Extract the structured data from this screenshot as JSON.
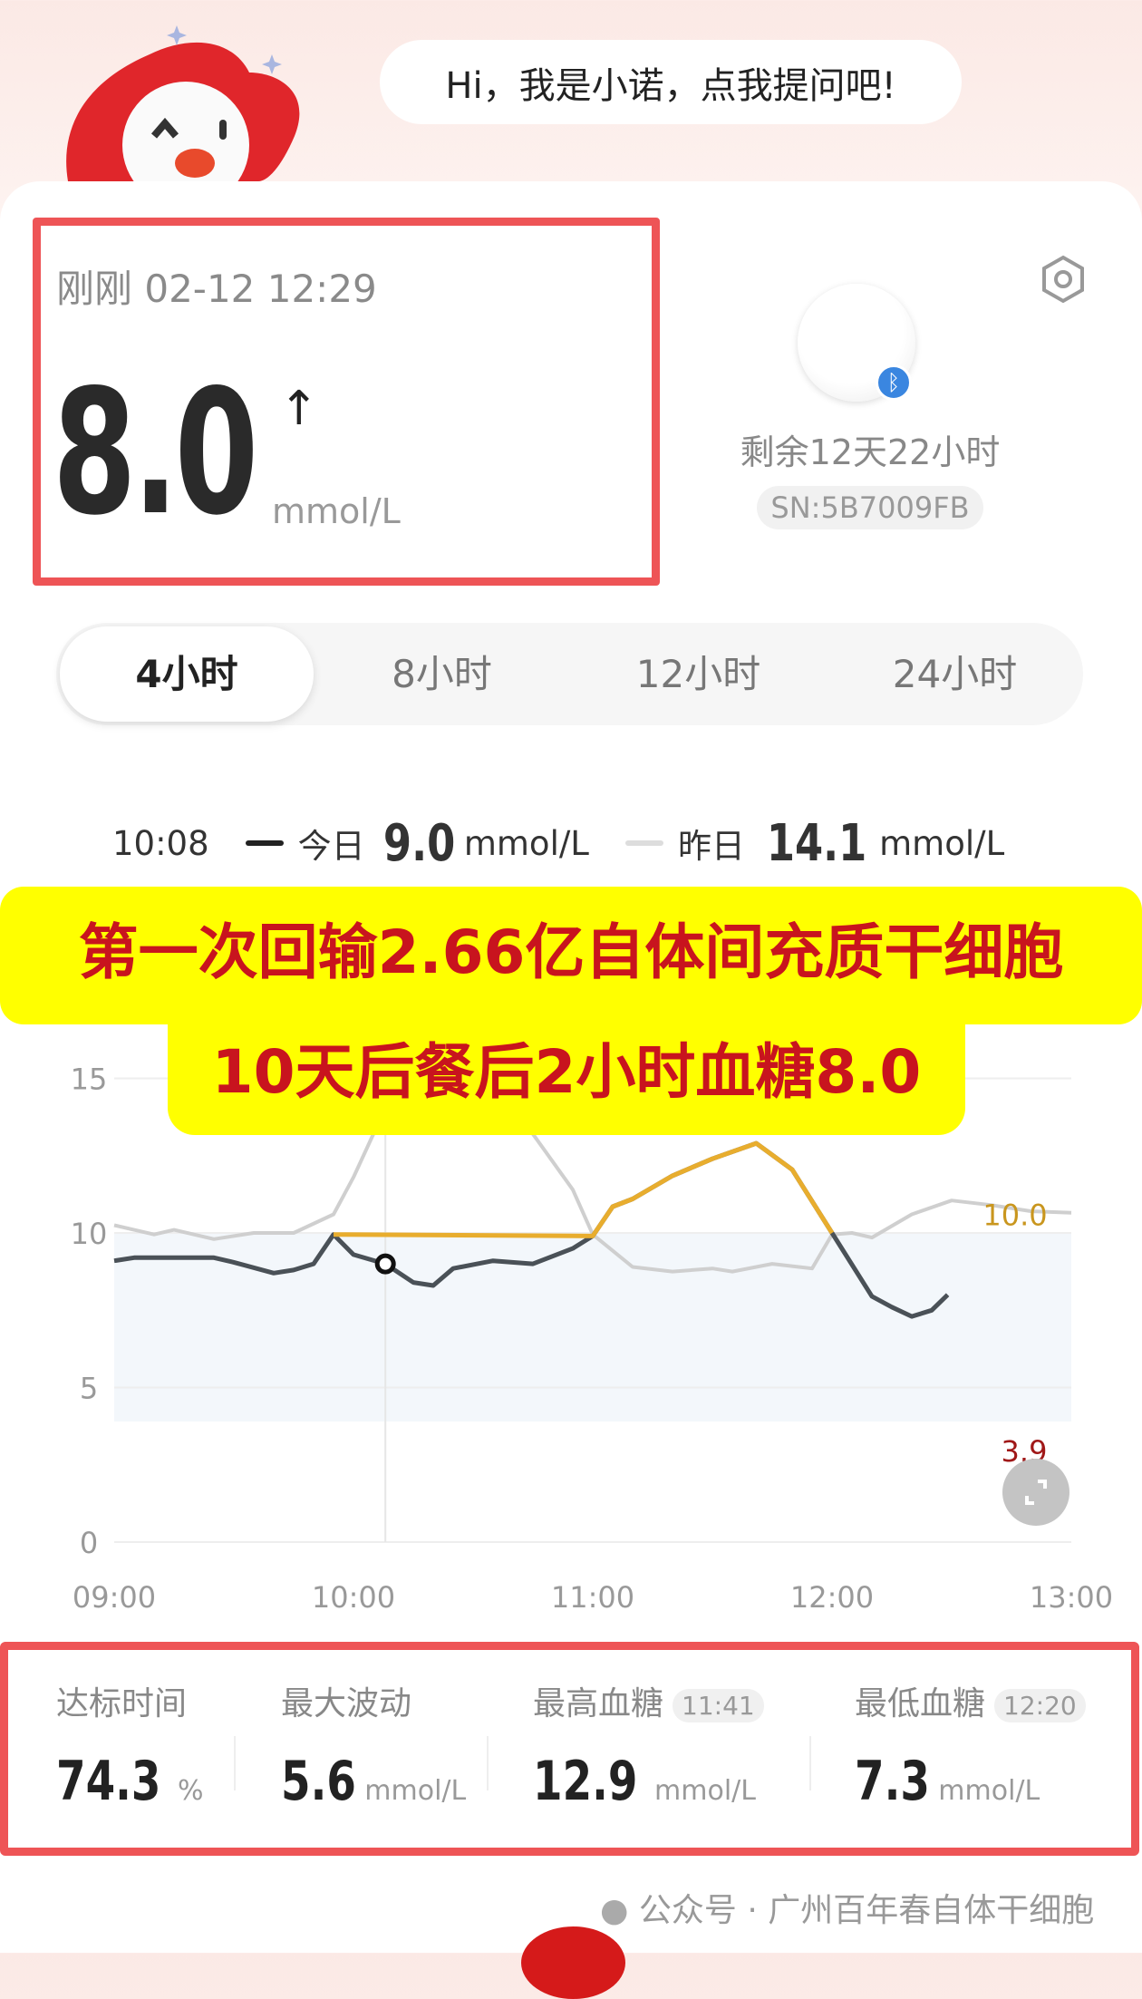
{
  "assistant": {
    "greeting": "Hi，我是小诺，点我提问吧!"
  },
  "reading": {
    "time_label": "刚刚 02-12 12:29",
    "value": "8.0",
    "trend": "↑",
    "unit": "mmol/L"
  },
  "device": {
    "remaining": "剩余12天22小时",
    "sn": "SN:5B7009FB",
    "icon": "bluetooth-icon"
  },
  "tabs": [
    {
      "label": "4小时",
      "active": true
    },
    {
      "label": "8小时"
    },
    {
      "label": "12小时"
    },
    {
      "label": "24小时"
    }
  ],
  "legend": {
    "time": "10:08",
    "today_label": "今日",
    "today_value": "9.0",
    "yesterday_label": "昨日",
    "yesterday_value": "14.1",
    "unit": "mmol/L"
  },
  "banner": {
    "line1": "第一次回输2.66亿自体间充质干细胞",
    "line2": "10天后餐后2小时血糖8.0"
  },
  "chart_data": {
    "type": "line",
    "x_ticks": [
      "09:00",
      "10:00",
      "11:00",
      "12:00",
      "13:00"
    ],
    "y_ticks": [
      0,
      5,
      10,
      15
    ],
    "ylim": [
      0,
      15
    ],
    "target_range": [
      3.9,
      10.0
    ],
    "target_labels": {
      "high": "10.0",
      "low": "3.9"
    },
    "colors": {
      "today": "#4a5157",
      "today_high": "#e8ad2e",
      "yesterday": "#cfcfcf",
      "band": "#f3f7fb",
      "high_label": "#c9961e",
      "low_label": "#a01818"
    },
    "cursor": "10:08",
    "series": [
      {
        "key": "today",
        "points": [
          [
            "09:00",
            9.1
          ],
          [
            "09:05",
            9.2
          ],
          [
            "09:25",
            9.2
          ],
          [
            "09:30",
            9.05
          ],
          [
            "09:40",
            8.7
          ],
          [
            "09:45",
            8.8
          ],
          [
            "09:50",
            9.0
          ],
          [
            "09:55",
            9.95
          ],
          [
            "10:00",
            9.3
          ],
          [
            "10:08",
            9.0
          ],
          [
            "10:15",
            8.4
          ],
          [
            "10:20",
            8.3
          ],
          [
            "10:25",
            8.85
          ],
          [
            "10:35",
            9.1
          ],
          [
            "10:45",
            9.0
          ],
          [
            "10:55",
            9.5
          ],
          [
            "11:00",
            9.9
          ],
          [
            "11:05",
            10.85
          ],
          [
            "11:10",
            11.1
          ],
          [
            "11:20",
            11.85
          ],
          [
            "11:30",
            12.4
          ],
          [
            "11:41",
            12.9
          ],
          [
            "11:50",
            12.05
          ],
          [
            "12:00",
            10.0
          ],
          [
            "12:10",
            7.95
          ],
          [
            "12:15",
            7.6
          ],
          [
            "12:20",
            7.3
          ],
          [
            "12:25",
            7.5
          ],
          [
            "12:29",
            8.0
          ]
        ]
      },
      {
        "key": "yesterday",
        "points": [
          [
            "09:00",
            10.25
          ],
          [
            "09:10",
            9.95
          ],
          [
            "09:15",
            10.1
          ],
          [
            "09:25",
            9.8
          ],
          [
            "09:35",
            10.0
          ],
          [
            "09:45",
            10.0
          ],
          [
            "09:55",
            10.6
          ],
          [
            "10:00",
            11.8
          ],
          [
            "10:05",
            13.2
          ],
          [
            "10:08",
            14.1
          ],
          [
            "10:15",
            15.2
          ],
          [
            "10:25",
            15.8
          ],
          [
            "10:35",
            15.0
          ],
          [
            "10:45",
            13.2
          ],
          [
            "10:55",
            11.4
          ],
          [
            "11:00",
            9.95
          ],
          [
            "11:10",
            8.9
          ],
          [
            "11:20",
            8.75
          ],
          [
            "11:30",
            8.85
          ],
          [
            "11:35",
            8.75
          ],
          [
            "11:45",
            9.0
          ],
          [
            "11:55",
            8.85
          ],
          [
            "12:00",
            9.95
          ],
          [
            "12:05",
            10.0
          ],
          [
            "12:10",
            9.85
          ],
          [
            "12:20",
            10.6
          ],
          [
            "12:30",
            11.05
          ],
          [
            "12:40",
            10.9
          ],
          [
            "12:50",
            10.7
          ],
          [
            "13:00",
            10.65
          ]
        ]
      }
    ]
  },
  "stats": [
    {
      "label": "达标时间",
      "value": "74.3",
      "unit": "%"
    },
    {
      "label": "最大波动",
      "value": "5.6",
      "unit": "mmol/L"
    },
    {
      "label": "最高血糖",
      "time": "11:41",
      "value": "12.9",
      "unit": "mmol/L"
    },
    {
      "label": "最低血糖",
      "time": "12:20",
      "value": "7.3",
      "unit": "mmol/L"
    }
  ],
  "watermark": "公众号 · 广州百年春自体干细胞"
}
